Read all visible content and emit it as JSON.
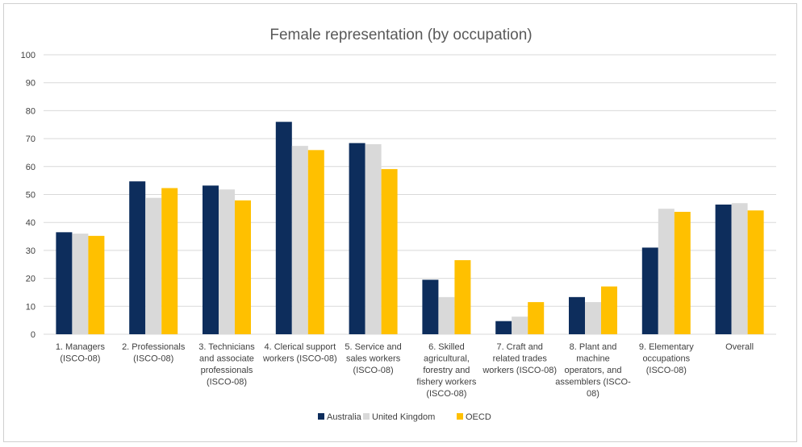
{
  "chart_data": {
    "type": "bar",
    "title": "Female representation (by occupation)",
    "xlabel": "",
    "ylabel": "",
    "ylim": [
      0,
      100
    ],
    "yticks": [
      0,
      10,
      20,
      30,
      40,
      50,
      60,
      70,
      80,
      90,
      100
    ],
    "grid": true,
    "legend_position": "bottom",
    "categories": [
      [
        "1. Managers",
        "(ISCO-08)"
      ],
      [
        "2. Professionals",
        "(ISCO-08)"
      ],
      [
        "3. Technicians",
        "and associate",
        "professionals",
        "(ISCO-08)"
      ],
      [
        "4. Clerical support",
        "workers (ISCO-08)"
      ],
      [
        "5. Service and",
        "sales workers",
        "(ISCO-08)"
      ],
      [
        "6. Skilled",
        "agricultural,",
        "forestry and",
        "fishery workers",
        "(ISCO-08)"
      ],
      [
        "7. Craft and",
        "related trades",
        "workers (ISCO-08)"
      ],
      [
        "8. Plant and",
        "machine",
        "operators, and",
        "assemblers (ISCO-",
        "08)"
      ],
      [
        "9. Elementary",
        "occupations",
        "(ISCO-08)"
      ],
      [
        "Overall"
      ]
    ],
    "series": [
      {
        "name": "Australia",
        "color": "#0d2d5c",
        "values": [
          36.5,
          54.7,
          53.2,
          76.0,
          68.4,
          19.5,
          4.7,
          13.3,
          31.0,
          46.4
        ]
      },
      {
        "name": "United Kingdom",
        "color": "#d9d9d9",
        "values": [
          36.0,
          48.8,
          51.8,
          67.4,
          68.0,
          13.3,
          6.3,
          11.5,
          44.9,
          46.9
        ]
      },
      {
        "name": "OECD",
        "color": "#ffc000",
        "values": [
          35.2,
          52.3,
          47.9,
          65.9,
          59.1,
          26.5,
          11.5,
          17.1,
          43.8,
          44.3
        ]
      }
    ]
  }
}
